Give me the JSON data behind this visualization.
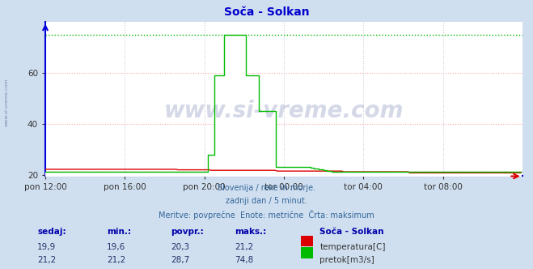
{
  "title": "Soča - Solkan",
  "title_color": "#0000cc",
  "bg_color": "#d0dff0",
  "plot_bg_color": "#ffffff",
  "xlabel_ticks": [
    "pon 12:00",
    "pon 16:00",
    "pon 20:00",
    "tor 00:00",
    "tor 04:00",
    "tor 08:00"
  ],
  "tick_positions": [
    0,
    48,
    96,
    144,
    192,
    240
  ],
  "xlim": [
    0,
    288
  ],
  "ylim": [
    19.5,
    80
  ],
  "yticks": [
    20,
    40,
    60
  ],
  "grid_color_h": "#ffaaaa",
  "grid_color_v": "#ccccdd",
  "temp_color": "#dd0000",
  "flow_color": "#00bb00",
  "watermark_color": "#1a2a7a",
  "subtitle_lines": [
    "Slovenija / reke in morje.",
    "zadnji dan / 5 minut.",
    "Meritve: povprečne  Enote: metrične  Črta: maksimum"
  ],
  "subtitle_color": "#336699",
  "table_headers": [
    "sedaj:",
    "min.:",
    "povpr.:",
    "maks.:"
  ],
  "table_color": "#0000aa",
  "row1": [
    "19,9",
    "19,6",
    "20,3",
    "21,2"
  ],
  "row2": [
    "21,2",
    "21,2",
    "28,7",
    "74,8"
  ],
  "legend_label1": "temperatura[C]",
  "legend_label2": "pretok[m3/s]",
  "station_label": "Soča - Solkan",
  "temp_max_value": 21.2,
  "flow_max_value": 74.8,
  "num_points": 288,
  "left_axis_color": "#0000dd",
  "bottom_axis_color": "#0000dd"
}
